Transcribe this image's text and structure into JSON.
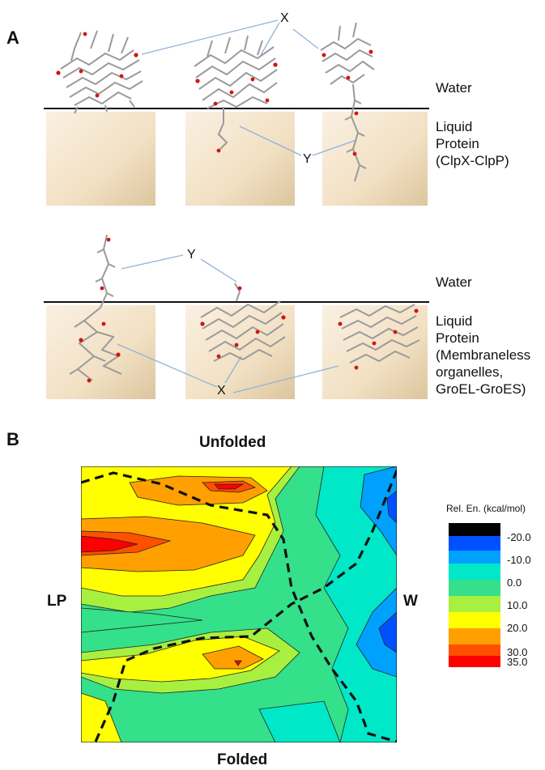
{
  "panel_a": {
    "letter": "A",
    "top": {
      "water_label": "Water",
      "protein_label": "Liquid\nProtein\n(ClpX-ClpP)",
      "callout_x": "X",
      "callout_y": "Y"
    },
    "bottom": {
      "water_label": "Water",
      "protein_label": "Liquid\nProtein\n(Membraneless\norganelles,\nGroEL-GroES)",
      "callout_x": "X",
      "callout_y": "Y"
    },
    "colors": {
      "protein_carbon": "#9a9a9a",
      "oxygen": "#d21414",
      "nitrogen": "#3a5fd6",
      "callout_line": "#8fb3d9"
    }
  },
  "panel_b": {
    "letter": "B",
    "top_label": "Unfolded",
    "bottom_label": "Folded",
    "left_label": "LP",
    "right_label": "W",
    "legend": {
      "title": "Rel. En. (kcal/mol)",
      "ticks": [
        "-20.0",
        "-10.0",
        "0.0",
        "10.0",
        "20.0",
        "30.0",
        "35.0"
      ],
      "colors": [
        "#000000",
        "#0050ff",
        "#00a0ff",
        "#00e8c8",
        "#34e08a",
        "#a8f040",
        "#ffff00",
        "#ffa000",
        "#ff5000",
        "#ff0000"
      ]
    }
  }
}
